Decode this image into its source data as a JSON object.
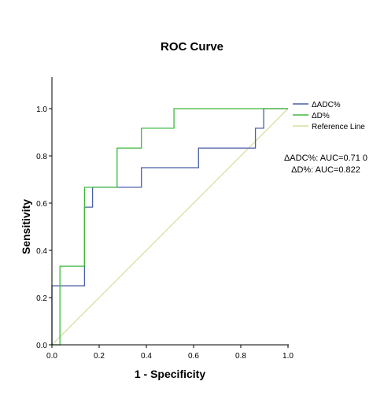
{
  "chart_data": {
    "type": "line",
    "title": "ROC Curve",
    "xlabel": "1 - Specificity",
    "ylabel": "Sensitivity",
    "xlim": [
      0,
      1
    ],
    "ylim": [
      0,
      1
    ],
    "xticks": [
      "0.0",
      "0.2",
      "0.4",
      "0.6",
      "0.8",
      "1.0"
    ],
    "yticks": [
      "0.0",
      "0.2",
      "0.4",
      "0.6",
      "0.8",
      "1.0"
    ],
    "grid": false,
    "legend_position": "top-right",
    "series": [
      {
        "name": "ΔADC%",
        "color": "#4a5fa8",
        "points": [
          [
            0,
            0
          ],
          [
            0,
            0.25
          ],
          [
            0.138,
            0.25
          ],
          [
            0.138,
            0.583
          ],
          [
            0.172,
            0.583
          ],
          [
            0.172,
            0.667
          ],
          [
            0.379,
            0.667
          ],
          [
            0.379,
            0.75
          ],
          [
            0.621,
            0.75
          ],
          [
            0.621,
            0.833
          ],
          [
            0.862,
            0.833
          ],
          [
            0.862,
            0.917
          ],
          [
            0.897,
            0.917
          ],
          [
            0.897,
            1.0
          ],
          [
            1.0,
            1.0
          ]
        ]
      },
      {
        "name": "ΔD%",
        "color": "#3fb83f",
        "points": [
          [
            0,
            0
          ],
          [
            0.034,
            0
          ],
          [
            0.034,
            0.333
          ],
          [
            0.138,
            0.333
          ],
          [
            0.138,
            0.667
          ],
          [
            0.276,
            0.667
          ],
          [
            0.276,
            0.833
          ],
          [
            0.379,
            0.833
          ],
          [
            0.379,
            0.917
          ],
          [
            0.517,
            0.917
          ],
          [
            0.517,
            1.0
          ],
          [
            1.0,
            1.0
          ]
        ]
      },
      {
        "name": "Reference Line",
        "color": "#d9dfa0",
        "points": [
          [
            0,
            0
          ],
          [
            1,
            1
          ]
        ]
      }
    ],
    "annotations": [
      "ΔADC%: AUC=0.71 0",
      "ΔD%: AUC=0.822"
    ]
  }
}
